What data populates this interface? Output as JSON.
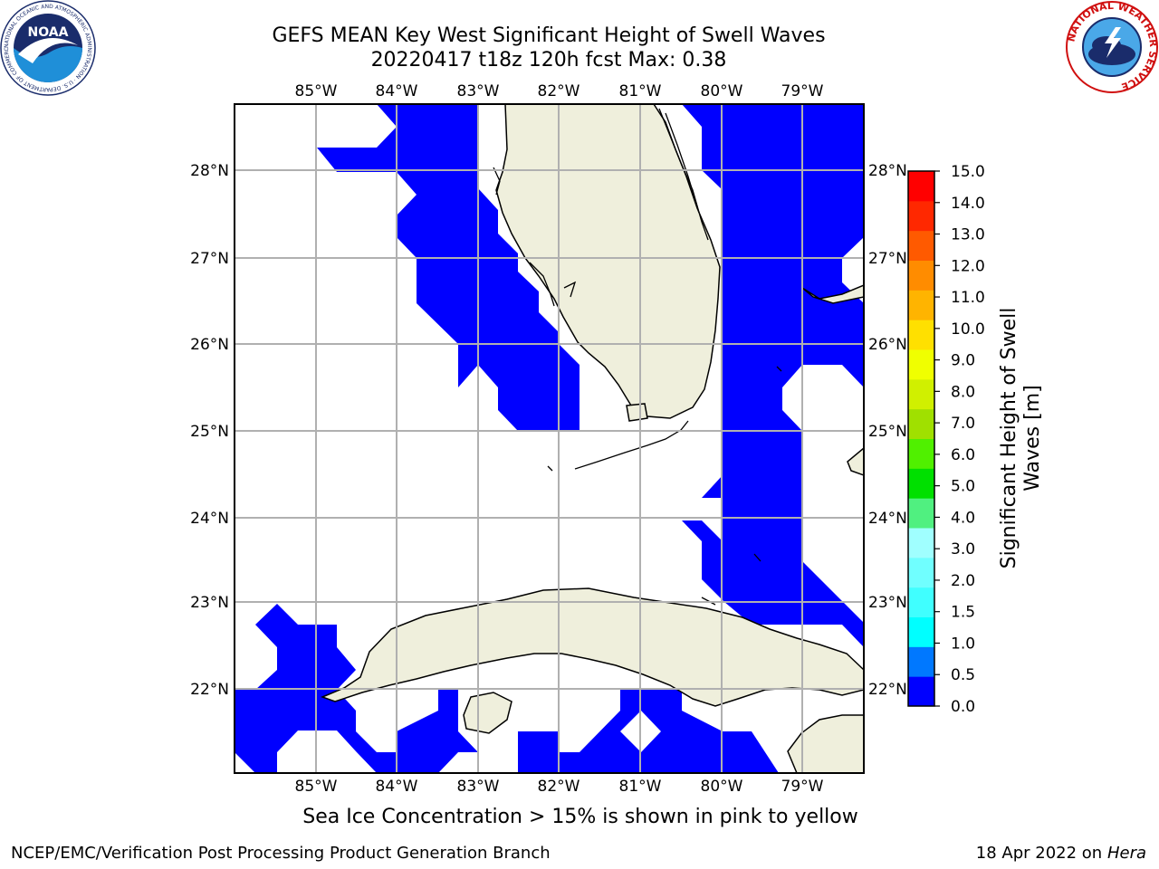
{
  "title": {
    "line1": "GEFS MEAN Key West Significant Height of Swell Waves",
    "line2": "20220417 t18z 120h fcst   Max: 0.38"
  },
  "logos": {
    "noaa": {
      "text": "NOAA",
      "ring_text": "NATIONAL OCEANIC AND ATMOSPHERIC ADMINISTRATION · U.S. DEPARTMENT OF COMMERCE"
    },
    "nws": {
      "ring_text": "NATIONAL WEATHER SERVICE"
    }
  },
  "map": {
    "lon_ticks": [
      "85°W",
      "84°W",
      "83°W",
      "82°W",
      "81°W",
      "80°W",
      "79°W"
    ],
    "lat_ticks": [
      "28°N",
      "27°N",
      "26°N",
      "25°N",
      "24°N",
      "23°N",
      "22°N"
    ],
    "colors": {
      "land": "#efefdc",
      "swell": "#0000ff",
      "grid": "#b0b0b0",
      "frame": "#000000"
    }
  },
  "colorbar": {
    "label_line1": "Significant Height of Swell",
    "label_line2": "Waves [m]",
    "levels": [
      "0.0",
      "0.5",
      "1.0",
      "1.5",
      "2.0",
      "3.0",
      "4.0",
      "5.0",
      "6.0",
      "7.0",
      "8.0",
      "9.0",
      "10.0",
      "11.0",
      "12.0",
      "13.0",
      "14.0",
      "15.0"
    ],
    "colors": [
      "#0000ff",
      "#0078ff",
      "#00ffff",
      "#40ffff",
      "#70ffff",
      "#a0ffff",
      "#50f080",
      "#00e000",
      "#50f000",
      "#a0e000",
      "#d0f000",
      "#f0ff00",
      "#ffe000",
      "#ffb400",
      "#ff8c00",
      "#ff5a00",
      "#ff2800",
      "#ff0000"
    ]
  },
  "notes": {
    "ice": "Sea Ice Concentration > 15% is shown in pink to yellow"
  },
  "footer": {
    "left": "NCEP/EMC/Verification Post Processing Product Generation Branch",
    "right_prefix": "18 Apr 2022 on",
    "right_host": "Hera"
  }
}
